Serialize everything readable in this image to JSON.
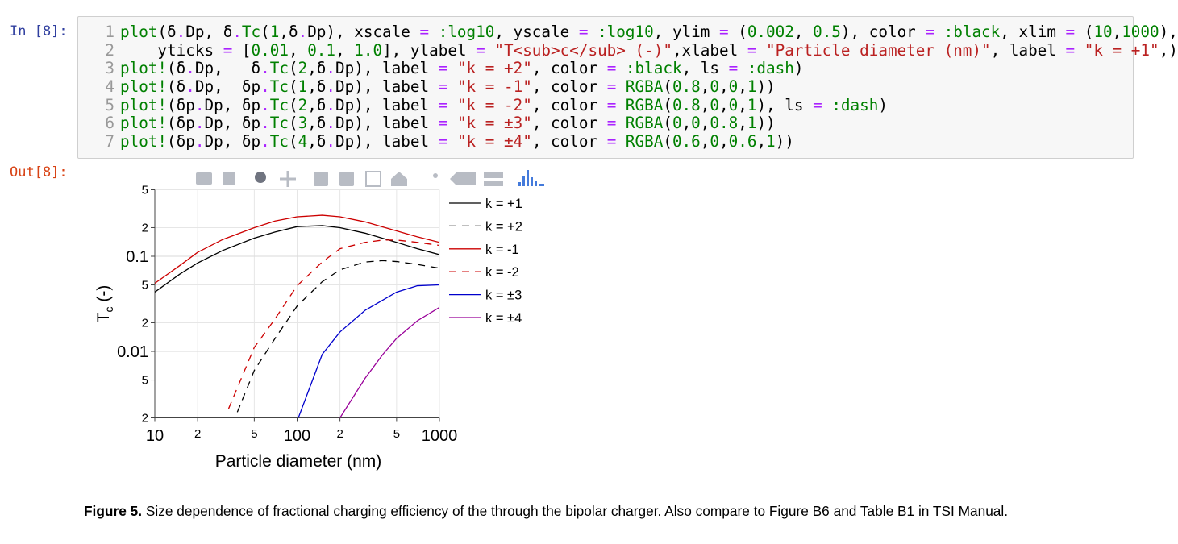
{
  "cell": {
    "in_prompt": "In [8]:",
    "out_prompt": "Out[8]:",
    "line_numbers": [
      1,
      2,
      3,
      4,
      5,
      6,
      7
    ],
    "code_lines": [
      "plot(δ.Dp, δ.Tc(1,δ.Dp), xscale = :log10, yscale = :log10, ylim = (0.002, 0.5), color = :black, xlim = (10,1000),",
      "    yticks = [0.01, 0.1, 1.0], ylabel = \"T<sub>c</sub> (-)\",xlabel = \"Particle diameter (nm)\", label = \"k = +1\",)",
      "plot!(δ.Dp,   δ.Tc(2,δ.Dp), label = \"k = +2\", color = :black, ls = :dash)",
      "plot!(δ.Dp,  δp.Tc(1,δ.Dp), label = \"k = -1\", color = RGBA(0.8,0,0,1))",
      "plot!(δp.Dp, δp.Tc(2,δ.Dp), label = \"k = -2\", color = RGBA(0.8,0,0,1), ls = :dash)",
      "plot!(δp.Dp, δp.Tc(3,δ.Dp), label = \"k = ±3\", color = RGBA(0,0,0.8,1))",
      "plot!(δp.Dp, δp.Tc(4,δ.Dp), label = \"k = ±4\", color = RGBA(0.6,0,0.6,1))"
    ]
  },
  "chart_data": {
    "type": "line",
    "xscale": "log",
    "yscale": "log",
    "grid": true,
    "legend": "right",
    "xlabel": "Particle diameter (nm)",
    "ylabel": {
      "main": "T",
      "sub": "c",
      "rest": " (-)"
    },
    "xlim": [
      10,
      1000
    ],
    "ylim": [
      0.002,
      0.5
    ],
    "xticks": [
      10,
      {
        "value": 20,
        "label": "2"
      },
      {
        "value": 50,
        "label": "5"
      },
      100,
      {
        "value": 200,
        "label": "2"
      },
      {
        "value": 500,
        "label": "5"
      },
      1000
    ],
    "yticks": [
      {
        "value": 0.002,
        "label": "2"
      },
      {
        "value": 0.005,
        "label": "5"
      },
      0.01,
      {
        "value": 0.02,
        "label": "2"
      },
      {
        "value": 0.05,
        "label": "5"
      },
      0.1,
      {
        "value": 0.2,
        "label": "2"
      },
      {
        "value": 0.5,
        "label": "5"
      }
    ],
    "series": [
      {
        "name": "k = +1",
        "color": "#000000",
        "dash": false,
        "x": [
          10,
          15,
          20,
          30,
          50,
          70,
          100,
          150,
          200,
          300,
          500,
          700,
          1000
        ],
        "values": [
          0.042,
          0.065,
          0.085,
          0.115,
          0.155,
          0.18,
          0.205,
          0.21,
          0.2,
          0.175,
          0.14,
          0.12,
          0.104
        ]
      },
      {
        "name": "k = +2",
        "color": "#000000",
        "dash": true,
        "x": [
          38,
          50,
          70,
          100,
          150,
          200,
          300,
          400,
          500,
          700,
          1000
        ],
        "values": [
          0.0023,
          0.0063,
          0.0137,
          0.03,
          0.054,
          0.072,
          0.087,
          0.09,
          0.088,
          0.082,
          0.075
        ]
      },
      {
        "name": "k = -1",
        "color": "#cc0000",
        "dash": false,
        "x": [
          10,
          15,
          20,
          30,
          50,
          70,
          100,
          150,
          200,
          300,
          500,
          700,
          1000
        ],
        "values": [
          0.052,
          0.08,
          0.11,
          0.15,
          0.2,
          0.235,
          0.26,
          0.27,
          0.26,
          0.23,
          0.185,
          0.16,
          0.14
        ]
      },
      {
        "name": "k = -2",
        "color": "#cc0000",
        "dash": true,
        "x": [
          33,
          50,
          70,
          100,
          150,
          200,
          300,
          400,
          500,
          700,
          1000
        ],
        "values": [
          0.0025,
          0.011,
          0.022,
          0.049,
          0.087,
          0.12,
          0.14,
          0.148,
          0.148,
          0.14,
          0.13
        ]
      },
      {
        "name": "k = ±3",
        "color": "#0000cc",
        "dash": false,
        "x": [
          102,
          150,
          200,
          300,
          500,
          700,
          1000
        ],
        "values": [
          0.002,
          0.0093,
          0.016,
          0.027,
          0.042,
          0.049,
          0.05
        ]
      },
      {
        "name": "k = ±4",
        "color": "#990099",
        "dash": false,
        "x": [
          200,
          300,
          400,
          500,
          700,
          1000
        ],
        "values": [
          0.002,
          0.0052,
          0.0093,
          0.0137,
          0.021,
          0.029
        ]
      }
    ]
  },
  "caption": {
    "label": "Figure 5.",
    "text": " Size dependence of fractional charging efficiency of the through the bipolar charger. Also compare to Figure B6 and Table B1 in TSI Manual."
  }
}
